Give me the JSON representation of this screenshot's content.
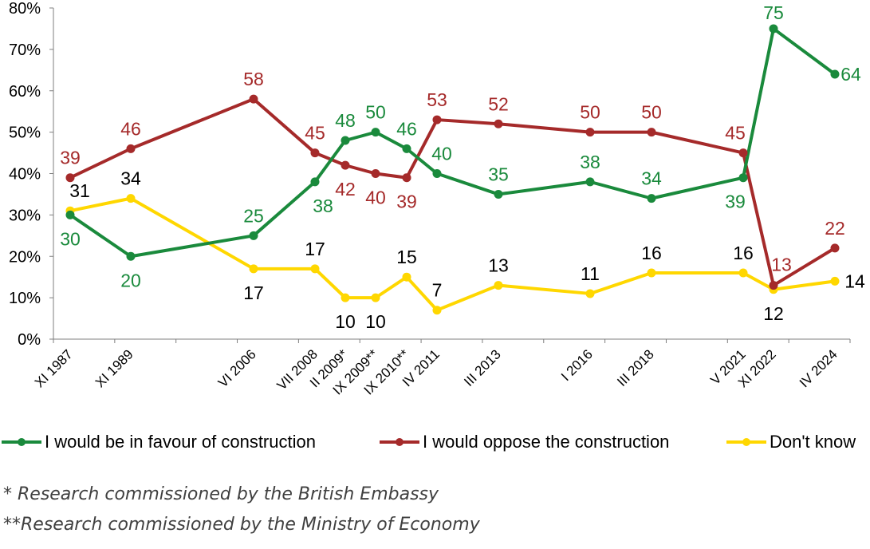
{
  "chart_data": {
    "type": "line",
    "title": "",
    "xlabel": "",
    "ylabel": "",
    "ylim": [
      0,
      80
    ],
    "yticks": [
      "0%",
      "10%",
      "20%",
      "30%",
      "40%",
      "50%",
      "60%",
      "70%",
      "80%"
    ],
    "grid": false,
    "legend_position": "bottom",
    "categories": [
      "XI 1987",
      "XI 1989",
      "VI 2006",
      "VII 2008",
      "II 2009*",
      "IX 2009**",
      "IX 2010**",
      "IV 2011",
      "III 2013",
      "I 2016",
      "III 2018",
      "V 2021",
      "XI 2022",
      "IV 2024"
    ],
    "series": [
      {
        "name": "I would be in favour of construction",
        "color": "#1a8a3c",
        "label_color": "#1a8a3c",
        "values": [
          30,
          20,
          25,
          38,
          48,
          50,
          46,
          40,
          35,
          38,
          34,
          39,
          75,
          64
        ],
        "labels": [
          "30",
          "20",
          "25",
          "38",
          "48",
          "50",
          "46",
          "40",
          "35",
          "38",
          "34",
          "39",
          "75",
          "64"
        ]
      },
      {
        "name": "I would oppose the construction",
        "color": "#a52a2a",
        "label_color": "#a52a2a",
        "values": [
          39,
          46,
          58,
          45,
          42,
          40,
          39,
          53,
          52,
          50,
          50,
          45,
          13,
          22
        ],
        "labels": [
          "39",
          "46",
          "58",
          "45",
          "42",
          "40",
          "39",
          "53",
          "52",
          "50",
          "50",
          "45",
          "13",
          "22"
        ]
      },
      {
        "name": "Don't know",
        "color": "#ffd700",
        "label_color": "#000000",
        "values": [
          31,
          34,
          17,
          17,
          10,
          10,
          15,
          7,
          13,
          11,
          16,
          16,
          12,
          14
        ],
        "labels": [
          "31",
          "34",
          "17",
          "17",
          "10",
          "10",
          "15",
          "7",
          "13",
          "11",
          "16",
          "16",
          "12",
          "14"
        ]
      }
    ]
  },
  "notes": [
    "* Research commissioned by the British Embassy",
    "**Research commissioned by the Ministry of Economy"
  ]
}
